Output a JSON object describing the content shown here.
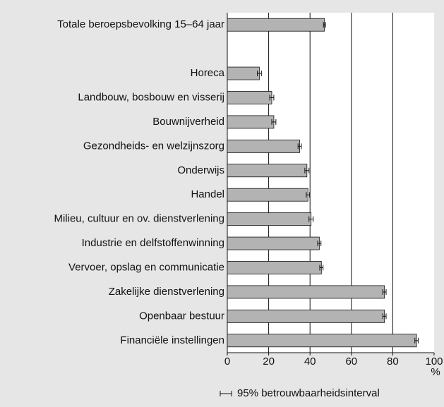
{
  "chart_data": {
    "type": "bar",
    "orientation": "horizontal",
    "categories": [
      "Totale beroepsbevolking 15–64 jaar",
      null,
      "Horeca",
      "Landbouw, bosbouw en visserij",
      "Bouwnijverheid",
      "Gezondheids- en welzijnszorg",
      "Onderwijs",
      "Handel",
      "Milieu, cultuur en ov. dienstverlening",
      "Industrie en delfstoffenwinning",
      "Vervoer, opslag en communicatie",
      "Zakelijke dienstverlening",
      "Openbaar bestuur",
      "Financiële instellingen"
    ],
    "values": [
      47,
      null,
      15.5,
      21.5,
      22.5,
      35,
      38.5,
      39,
      40.5,
      44.5,
      45.5,
      76,
      76,
      91.5
    ],
    "errors": [
      0.5,
      null,
      1,
      1,
      1,
      0.8,
      1,
      0.8,
      1,
      0.8,
      0.8,
      0.8,
      0.8,
      0.8
    ],
    "color": "#b3b3b3",
    "xlim": [
      0,
      100
    ],
    "xticks": [
      0,
      20,
      40,
      60,
      80,
      100
    ],
    "grid": true,
    "x_label": "%",
    "legend": "95% betrouwbaarheidsinterval"
  }
}
